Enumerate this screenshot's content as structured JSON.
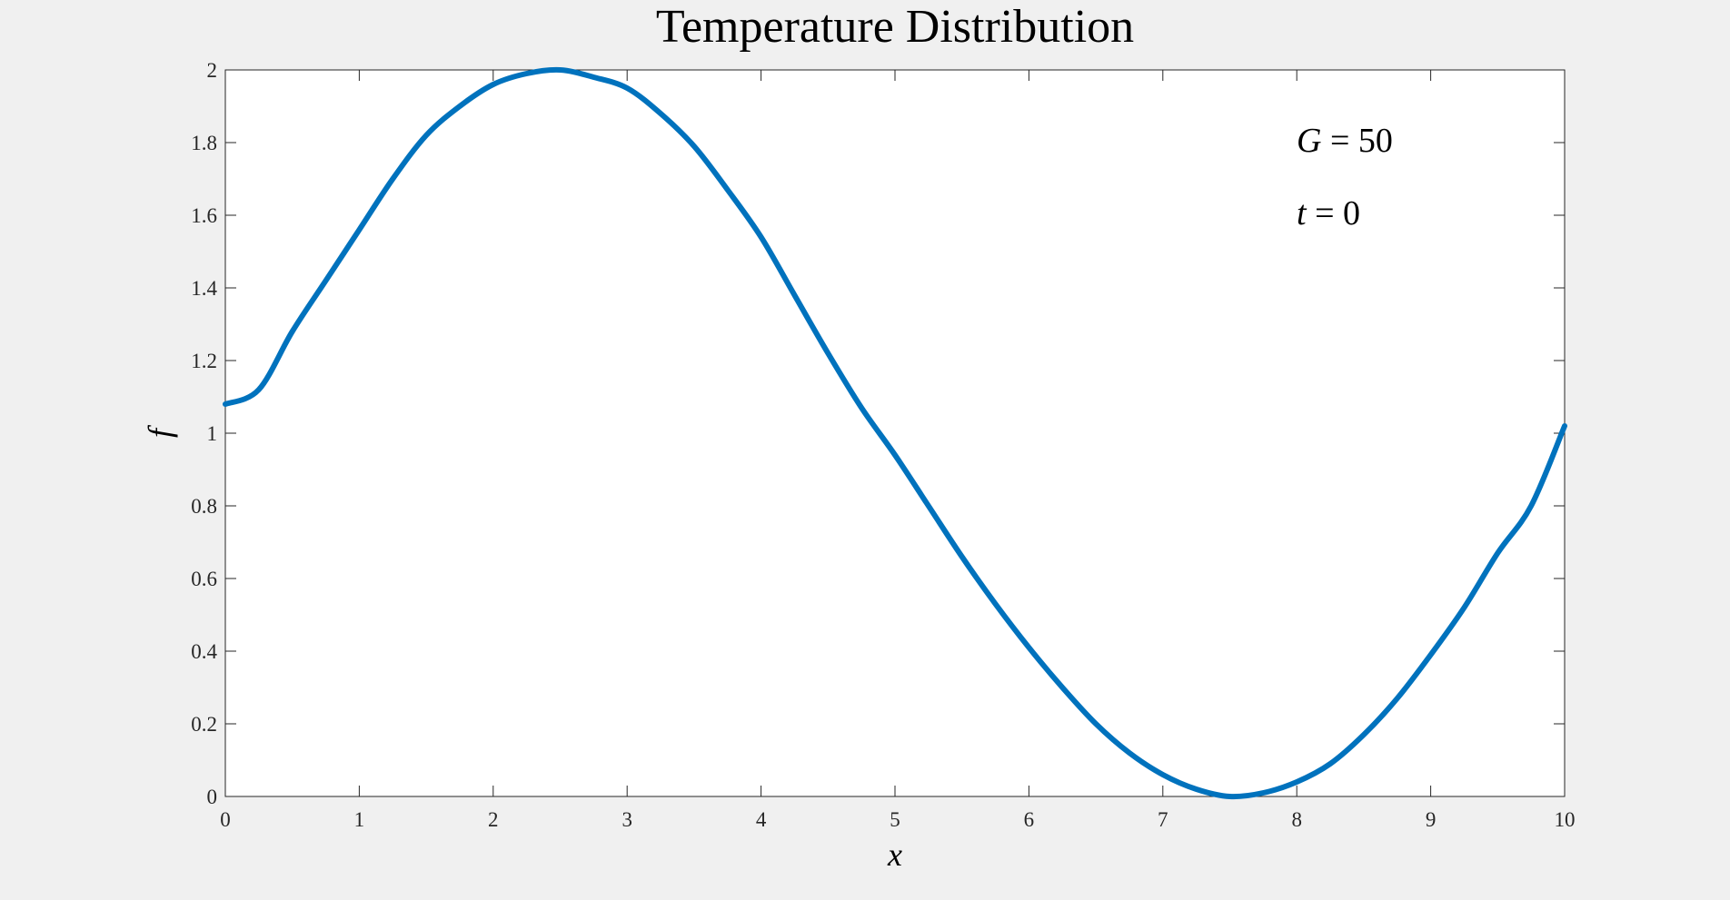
{
  "chart_data": {
    "type": "line",
    "title": "Temperature Distribution",
    "xlabel": "x",
    "ylabel": "f",
    "xlim": [
      0,
      10
    ],
    "ylim": [
      0,
      2
    ],
    "xticks": [
      0,
      1,
      2,
      3,
      4,
      5,
      6,
      7,
      8,
      9,
      10
    ],
    "yticks": [
      0,
      0.2,
      0.4,
      0.6,
      0.8,
      1,
      1.2,
      1.4,
      1.6,
      1.8,
      2
    ],
    "grid": false,
    "annotations": [
      {
        "var": "G",
        "value": "50"
      },
      {
        "var": "t",
        "value": "0"
      }
    ],
    "series": [
      {
        "color": "#0072bd",
        "x": [
          0,
          0.25,
          0.5,
          0.75,
          1,
          1.25,
          1.5,
          1.75,
          2,
          2.25,
          2.5,
          2.75,
          3,
          3.25,
          3.5,
          3.75,
          4,
          4.25,
          4.5,
          4.75,
          5,
          5.25,
          5.5,
          5.75,
          6,
          6.25,
          6.5,
          6.75,
          7,
          7.25,
          7.5,
          7.75,
          8,
          8.25,
          8.5,
          8.75,
          9,
          9.25,
          9.5,
          9.75,
          10
        ],
        "y": [
          1.08,
          1.12,
          1.28,
          1.42,
          1.56,
          1.7,
          1.82,
          1.9,
          1.96,
          1.99,
          2.0,
          1.98,
          1.95,
          1.88,
          1.79,
          1.67,
          1.54,
          1.38,
          1.22,
          1.07,
          0.94,
          0.8,
          0.66,
          0.53,
          0.41,
          0.3,
          0.2,
          0.12,
          0.06,
          0.02,
          0.0,
          0.01,
          0.04,
          0.09,
          0.17,
          0.27,
          0.39,
          0.52,
          0.67,
          0.8,
          1.02
        ]
      }
    ]
  }
}
